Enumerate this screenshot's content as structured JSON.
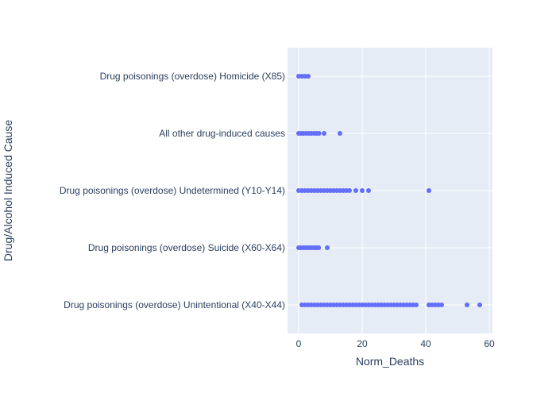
{
  "chart_data": {
    "type": "scatter",
    "title": "",
    "xlabel": "Norm_Deaths",
    "ylabel": "Drug/Alcohol Induced Cause",
    "xlim": [
      -3.5,
      61
    ],
    "x_ticks": [
      0,
      20,
      40,
      60
    ],
    "grid": true,
    "legend": "none",
    "colors": {
      "marker": "#636efa",
      "plot_bg": "#e5ecf6",
      "grid": "#ffffff",
      "text": "#2a3f5f"
    },
    "categories": [
      "Drug poisonings (overdose) Unintentional (X40-X44)",
      "Drug poisonings (overdose) Suicide (X60-X64)",
      "Drug poisonings (overdose) Undetermined (Y10-Y14)",
      "All other drug-induced causes",
      "Drug poisonings (overdose) Homicide (X85)"
    ],
    "points": [
      {
        "category": "Drug poisonings (overdose) Unintentional (X40-X44)",
        "x": [
          1,
          2,
          3,
          4,
          5,
          6,
          7,
          8,
          9,
          10,
          11,
          12,
          13,
          14,
          15,
          16,
          17,
          18,
          19,
          20,
          21,
          22,
          23,
          24,
          25,
          26,
          27,
          28,
          29,
          30,
          31,
          32,
          33,
          34,
          35,
          36,
          37,
          41,
          42,
          43,
          44,
          45,
          53,
          57
        ]
      },
      {
        "category": "Drug poisonings (overdose) Suicide (X60-X64)",
        "x": [
          0,
          0.7,
          1.4,
          2.1,
          2.8,
          3.5,
          4.2,
          4.9,
          5.6,
          6.3,
          9
        ]
      },
      {
        "category": "Drug poisonings (overdose) Undetermined (Y10-Y14)",
        "x": [
          0,
          1,
          2,
          3,
          4,
          5,
          6,
          7,
          8,
          9,
          10,
          11,
          12,
          13,
          14,
          15,
          16,
          18,
          20,
          22,
          41
        ]
      },
      {
        "category": "All other drug-induced causes",
        "x": [
          0,
          0.8,
          1.6,
          2.4,
          3.2,
          4,
          4.8,
          5.6,
          6.4,
          8,
          13
        ]
      },
      {
        "category": "Drug poisonings (overdose) Homicide (X85)",
        "x": [
          0,
          1,
          2,
          3
        ]
      }
    ]
  }
}
